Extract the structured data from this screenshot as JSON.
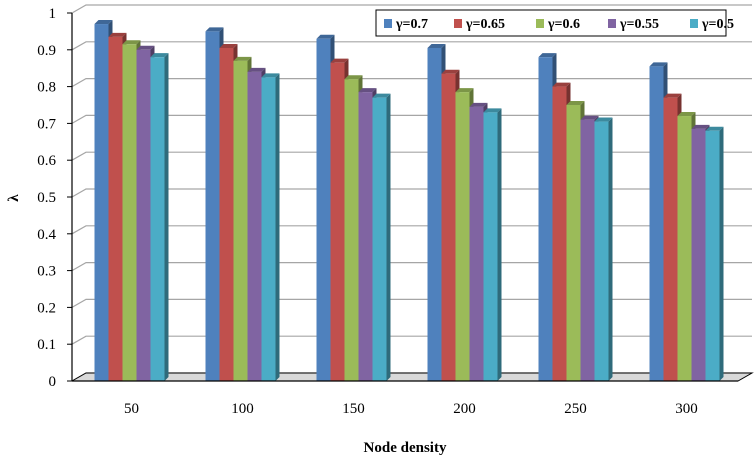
{
  "chart_data": {
    "type": "bar",
    "title": "",
    "xlabel": "Node density",
    "ylabel": "λ",
    "categories": [
      "50",
      "100",
      "150",
      "200",
      "250",
      "300"
    ],
    "ylim": [
      0,
      1
    ],
    "yticks": [
      "0",
      "0.1",
      "0.2",
      "0.3",
      "0.4",
      "0.5",
      "0.6",
      "0.7",
      "0.8",
      "0.9",
      "1"
    ],
    "grid": true,
    "legend_position": "top-right",
    "series": [
      {
        "name": "γ=0.7",
        "color": "#4f81bd",
        "values": [
          0.97,
          0.95,
          0.93,
          0.905,
          0.88,
          0.855
        ]
      },
      {
        "name": "γ=0.65",
        "color": "#c0504d",
        "values": [
          0.935,
          0.905,
          0.865,
          0.835,
          0.8,
          0.77
        ]
      },
      {
        "name": "γ=0.6",
        "color": "#9bbb59",
        "values": [
          0.915,
          0.87,
          0.82,
          0.785,
          0.75,
          0.72
        ]
      },
      {
        "name": "γ=0.55",
        "color": "#8064a2",
        "values": [
          0.9,
          0.84,
          0.785,
          0.745,
          0.71,
          0.685
        ]
      },
      {
        "name": "γ=0.5",
        "color": "#4bacc6",
        "values": [
          0.88,
          0.825,
          0.77,
          0.73,
          0.705,
          0.68
        ]
      }
    ]
  }
}
